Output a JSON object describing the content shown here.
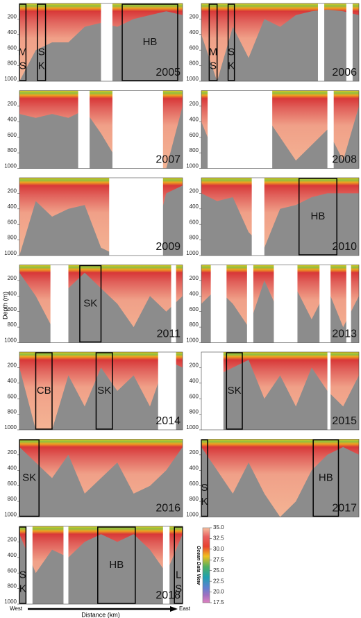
{
  "chart_data": [
    {
      "type": "section",
      "year": "2005",
      "x": [
        0,
        10,
        20,
        30,
        40,
        50,
        60,
        70,
        80,
        90,
        100
      ],
      "depth": [
        1000,
        600,
        500,
        500,
        300,
        250,
        300,
        200,
        150,
        100,
        150
      ],
      "gaps": [
        [
          50,
          57
        ]
      ],
      "boxes": [
        {
          "lines": [
            "M",
            "S"
          ],
          "x": [
            0,
            4
          ]
        },
        {
          "lines": [
            "S",
            "K"
          ],
          "x": [
            11,
            16
          ]
        },
        {
          "lines": [
            "HB"
          ],
          "x": [
            63,
            97
          ]
        }
      ]
    },
    {
      "type": "section",
      "year": "2006",
      "x": [
        0,
        10,
        20,
        30,
        40,
        50,
        60,
        70,
        80,
        90,
        100
      ],
      "depth": [
        400,
        1000,
        300,
        700,
        200,
        300,
        150,
        100,
        80,
        100,
        150
      ],
      "gaps": [
        [
          74,
          78
        ],
        [
          92,
          96
        ]
      ],
      "boxes": [
        {
          "lines": [
            "M",
            "S"
          ],
          "x": [
            5,
            10
          ]
        },
        {
          "lines": [
            "S",
            "K"
          ],
          "x": [
            17,
            21
          ]
        }
      ]
    },
    {
      "type": "section",
      "year": "2007",
      "x": [
        0,
        10,
        20,
        30,
        40,
        50,
        60,
        70,
        80,
        90,
        100
      ],
      "depth": [
        300,
        350,
        300,
        350,
        250,
        550,
        900,
        1000,
        1000,
        1000,
        200
      ],
      "gaps": [
        [
          36,
          43
        ],
        [
          57,
          88
        ]
      ],
      "boxes": []
    },
    {
      "type": "section",
      "year": "2008",
      "x": [
        0,
        10,
        20,
        30,
        40,
        50,
        60,
        70,
        80,
        90,
        100
      ],
      "depth": [
        400,
        900,
        900,
        900,
        300,
        600,
        900,
        700,
        500,
        900,
        200
      ],
      "gaps": [
        [
          4,
          45
        ],
        [
          80,
          84
        ]
      ],
      "boxes": []
    },
    {
      "type": "section",
      "year": "2009",
      "x": [
        0,
        10,
        20,
        30,
        40,
        50,
        60,
        70,
        80,
        90,
        100
      ],
      "depth": [
        1000,
        300,
        500,
        400,
        350,
        900,
        1000,
        1000,
        1000,
        200,
        100
      ],
      "gaps": [
        [
          55,
          88
        ]
      ],
      "boxes": []
    },
    {
      "type": "section",
      "year": "2010",
      "x": [
        0,
        10,
        20,
        30,
        40,
        50,
        60,
        70,
        80,
        90,
        100
      ],
      "depth": [
        200,
        300,
        250,
        700,
        900,
        400,
        350,
        250,
        200,
        200,
        200
      ],
      "gaps": [
        [
          32,
          40
        ]
      ],
      "boxes": [
        {
          "lines": [
            "HB"
          ],
          "x": [
            62,
            86
          ]
        }
      ]
    },
    {
      "type": "section",
      "year": "2011",
      "x": [
        0,
        10,
        20,
        30,
        40,
        50,
        60,
        70,
        80,
        90,
        100
      ],
      "depth": [
        100,
        400,
        800,
        300,
        100,
        300,
        500,
        800,
        400,
        600,
        400
      ],
      "gaps": [
        [
          19,
          30
        ],
        [
          93,
          96
        ]
      ],
      "boxes": [
        {
          "lines": [
            "SK"
          ],
          "x": [
            37,
            50
          ]
        }
      ]
    },
    {
      "type": "section",
      "year": "2013",
      "x": [
        0,
        10,
        20,
        30,
        40,
        50,
        60,
        70,
        80,
        90,
        100
      ],
      "depth": [
        500,
        300,
        500,
        800,
        200,
        650,
        300,
        700,
        300,
        800,
        400
      ],
      "gaps": [
        [
          6,
          16
        ],
        [
          29,
          33
        ],
        [
          46,
          61
        ],
        [
          75,
          82
        ],
        [
          92,
          95
        ]
      ],
      "boxes": []
    },
    {
      "type": "section",
      "year": "2014",
      "x": [
        0,
        10,
        20,
        30,
        40,
        50,
        60,
        70,
        80,
        90,
        100
      ],
      "depth": [
        200,
        1000,
        1000,
        300,
        700,
        200,
        500,
        300,
        700,
        100,
        200
      ],
      "gaps": [
        [
          85,
          96
        ]
      ],
      "boxes": [
        {
          "lines": [
            "CB"
          ],
          "x": [
            10,
            20
          ]
        },
        {
          "lines": [
            "SK"
          ],
          "x": [
            47,
            57
          ]
        }
      ]
    },
    {
      "type": "section",
      "year": "2015",
      "x": [
        0,
        10,
        20,
        30,
        40,
        50,
        60,
        70,
        80,
        90,
        100
      ],
      "depth": [
        300,
        300,
        200,
        100,
        600,
        300,
        700,
        200,
        500,
        700,
        300
      ],
      "gaps": [
        [
          0,
          14
        ],
        [
          80,
          82
        ]
      ],
      "boxes": [
        {
          "lines": [
            "SK"
          ],
          "x": [
            16,
            26
          ]
        }
      ]
    },
    {
      "type": "section",
      "year": "2016",
      "x": [
        0,
        10,
        20,
        30,
        40,
        50,
        60,
        70,
        80,
        90,
        100
      ],
      "depth": [
        100,
        300,
        500,
        200,
        700,
        500,
        300,
        700,
        600,
        400,
        100
      ],
      "gaps": [],
      "boxes": [
        {
          "lines": [
            "SK"
          ],
          "x": [
            0,
            12
          ]
        }
      ]
    },
    {
      "type": "section",
      "year": "2017",
      "x": [
        0,
        10,
        20,
        30,
        40,
        50,
        60,
        70,
        80,
        90,
        100
      ],
      "depth": [
        100,
        400,
        700,
        300,
        700,
        1000,
        800,
        400,
        200,
        100,
        200
      ],
      "gaps": [],
      "boxes": [
        {
          "lines": [
            "S",
            "K"
          ],
          "x": [
            0,
            4
          ]
        },
        {
          "lines": [
            "HB"
          ],
          "x": [
            71,
            87
          ]
        }
      ]
    },
    {
      "type": "section",
      "year": "2018",
      "x": [
        0,
        10,
        20,
        30,
        40,
        50,
        60,
        70,
        80,
        90,
        100
      ],
      "depth": [
        100,
        600,
        300,
        400,
        200,
        100,
        200,
        100,
        300,
        600,
        100
      ],
      "gaps": [
        [
          4,
          8
        ],
        [
          27,
          30
        ],
        [
          88,
          92
        ]
      ],
      "boxes": [
        {
          "lines": [
            "S",
            "K"
          ],
          "x": [
            0,
            4
          ]
        },
        {
          "lines": [
            "HB"
          ],
          "x": [
            48,
            71
          ]
        },
        {
          "lines": [
            "L",
            "S"
          ],
          "x": [
            95,
            100
          ]
        }
      ]
    }
  ],
  "ylim": [
    0,
    1000
  ],
  "yticks": [
    200,
    400,
    600,
    800,
    1000
  ],
  "xlim": [
    0,
    100
  ],
  "y_label": "Depth (m)",
  "x_label": "Distance (km)",
  "west_label": "West",
  "east_label": "East",
  "colorbar": {
    "title": "Ocean Data View",
    "lim": [
      17.5,
      35
    ],
    "ticks": [
      {
        "value": 35,
        "label": "35.0"
      },
      32.5,
      {
        "value": 30,
        "label": "30.0"
      },
      27.5,
      {
        "value": 25,
        "label": "25.0"
      },
      22.5,
      {
        "value": 20,
        "label": "20.0"
      },
      17.5
    ]
  }
}
